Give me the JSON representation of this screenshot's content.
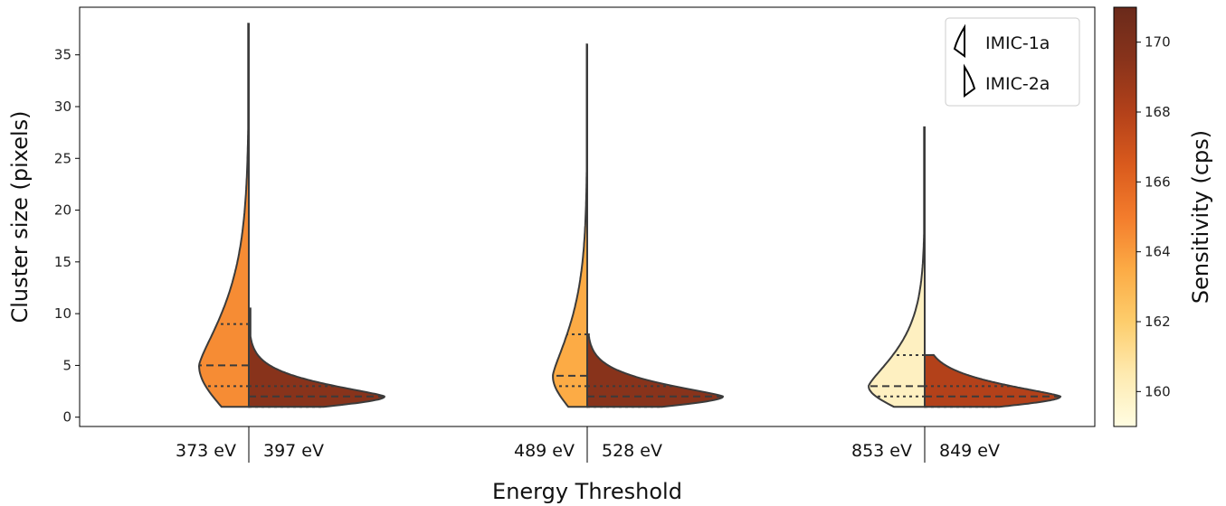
{
  "chart_data": {
    "type": "split-violin",
    "title": "",
    "xlabel": "Energy Threshold",
    "ylabel": "Cluster size (pixels)",
    "ylim": [
      -0.9,
      39.6
    ],
    "yticks": [
      0,
      5,
      10,
      15,
      20,
      25,
      30,
      35
    ],
    "grid": false,
    "legend": {
      "position": "top-right",
      "entries": [
        {
          "label": "IMIC-1a",
          "side": "left"
        },
        {
          "label": "IMIC-2a",
          "side": "right"
        }
      ]
    },
    "groups": [
      {
        "left": {
          "series": "IMIC-1a",
          "label": "373 eV",
          "sensitivity": 164.5,
          "min": 1,
          "max": 38,
          "q1": 3,
          "median": 5,
          "q3": 9
        },
        "right": {
          "series": "IMIC-2a",
          "label": "397 eV",
          "sensitivity": 169.5,
          "min": 1,
          "max": 10.5,
          "q1": 1,
          "median": 2,
          "q3": 3
        }
      },
      {
        "left": {
          "series": "IMIC-1a",
          "label": "489 eV",
          "sensitivity": 163.5,
          "min": 1,
          "max": 36,
          "q1": 3,
          "median": 4,
          "q3": 8
        },
        "right": {
          "series": "IMIC-2a",
          "label": "528 eV",
          "sensitivity": 169.5,
          "min": 1,
          "max": 8,
          "q1": 1,
          "median": 2,
          "q3": 3
        }
      },
      {
        "left": {
          "series": "IMIC-1a",
          "label": "853 eV",
          "sensitivity": 160,
          "min": 1,
          "max": 28,
          "q1": 2,
          "median": 3,
          "q3": 6
        },
        "right": {
          "series": "IMIC-2a",
          "label": "849 eV",
          "sensitivity": 168,
          "min": 1,
          "max": 6,
          "q1": 1,
          "median": 2,
          "q3": 3
        }
      }
    ],
    "colorbar": {
      "label": "Sensitivity (cps)",
      "range": [
        159,
        171
      ],
      "ticks": [
        160,
        162,
        164,
        166,
        168,
        170
      ],
      "colormap": [
        "#fffde2",
        "#feeab0",
        "#fdcd6c",
        "#fcab45",
        "#f37c2c",
        "#d95a1d",
        "#b3411a",
        "#88331b",
        "#6a2a1b"
      ]
    }
  }
}
